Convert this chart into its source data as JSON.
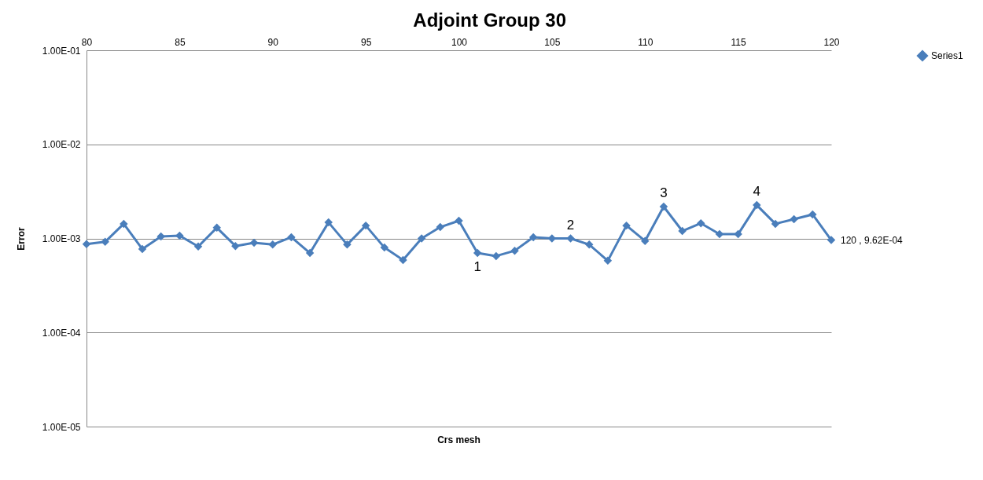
{
  "chart_data": {
    "type": "line",
    "title": "Adjoint Group 30",
    "xlabel": "Crs mesh",
    "ylabel": "Error",
    "x": [
      80,
      81,
      82,
      83,
      84,
      85,
      86,
      87,
      88,
      89,
      90,
      91,
      92,
      93,
      94,
      95,
      96,
      97,
      98,
      99,
      100,
      101,
      102,
      103,
      104,
      105,
      106,
      107,
      108,
      109,
      110,
      111,
      112,
      113,
      114,
      115,
      116,
      117,
      118,
      119,
      120
    ],
    "series": [
      {
        "name": "Series1",
        "color": "#4a7ebb",
        "values": [
          0.00087,
          0.00092,
          0.00143,
          0.00077,
          0.00105,
          0.00107,
          0.00082,
          0.0013,
          0.00083,
          0.0009,
          0.00086,
          0.00103,
          0.0007,
          0.00148,
          0.00086,
          0.00137,
          0.0008,
          0.00059,
          0.001,
          0.00132,
          0.00154,
          0.0007,
          0.00065,
          0.00074,
          0.00103,
          0.001,
          0.001,
          0.00086,
          0.00058,
          0.00137,
          0.00094,
          0.00218,
          0.0012,
          0.00145,
          0.00111,
          0.00111,
          0.00226,
          0.00143,
          0.0016,
          0.0018,
          0.000962
        ]
      }
    ],
    "xlim": [
      80,
      120
    ],
    "xticks": [
      80,
      85,
      90,
      95,
      100,
      105,
      110,
      115,
      120
    ],
    "ylim": [
      1e-05,
      0.1
    ],
    "yticks": [
      {
        "value": 0.1,
        "label": "1.00E-01"
      },
      {
        "value": 0.01,
        "label": "1.00E-02"
      },
      {
        "value": 0.001,
        "label": "1.00E-03"
      },
      {
        "value": 0.0001,
        "label": "1.00E-04"
      },
      {
        "value": 1e-05,
        "label": "1.00E-05"
      }
    ],
    "log": true,
    "grid": "y",
    "legend": "right",
    "marker": "diamond",
    "line_style": "solid",
    "annotations": [
      {
        "text": "1",
        "x": 101,
        "y": 0.0007
      },
      {
        "text": "2",
        "x": 106,
        "y": 0.001
      },
      {
        "text": "3",
        "x": 111,
        "y": 0.00218
      },
      {
        "text": "4",
        "x": 116,
        "y": 0.00226
      },
      {
        "text": "120 , 9.62E-04",
        "x": 120,
        "y": 0.000962
      }
    ]
  }
}
